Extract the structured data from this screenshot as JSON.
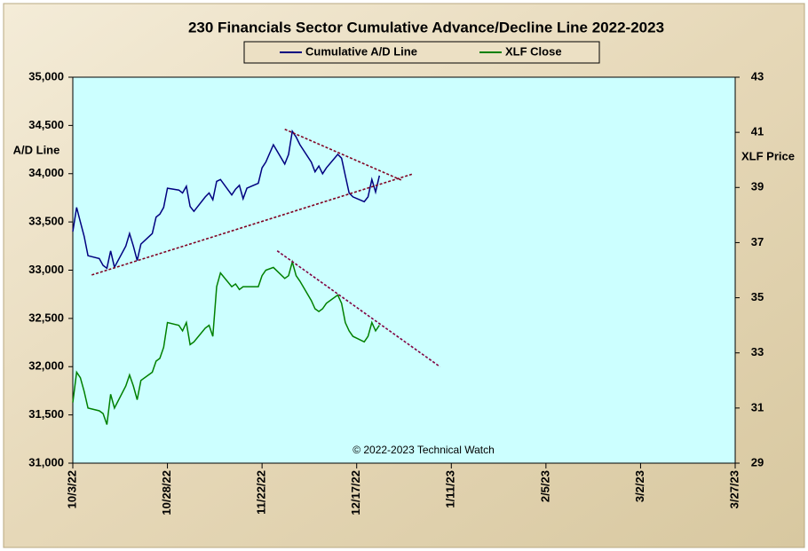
{
  "chart_data": {
    "type": "line",
    "title": "230 Financials  Sector Cumulative  Advance/Decline  Line 2022-2023",
    "y_label": "A/D Line",
    "y2_label": "XLF Price",
    "annotation": "© 2022-2023  Technical Watch",
    "x": [
      "2022-10-03",
      "2022-10-04",
      "2022-10-05",
      "2022-10-06",
      "2022-10-07",
      "2022-10-10",
      "2022-10-11",
      "2022-10-12",
      "2022-10-13",
      "2022-10-14",
      "2022-10-17",
      "2022-10-18",
      "2022-10-19",
      "2022-10-20",
      "2022-10-21",
      "2022-10-24",
      "2022-10-25",
      "2022-10-26",
      "2022-10-27",
      "2022-10-28",
      "2022-10-31",
      "2022-11-01",
      "2022-11-02",
      "2022-11-03",
      "2022-11-04",
      "2022-11-07",
      "2022-11-08",
      "2022-11-09",
      "2022-11-10",
      "2022-11-11",
      "2022-11-14",
      "2022-11-15",
      "2022-11-16",
      "2022-11-17",
      "2022-11-18",
      "2022-11-21",
      "2022-11-22",
      "2022-11-23",
      "2022-11-25",
      "2022-11-28",
      "2022-11-29",
      "2022-11-30",
      "2022-12-01",
      "2022-12-02",
      "2022-12-05",
      "2022-12-06",
      "2022-12-07",
      "2022-12-08",
      "2022-12-09",
      "2022-12-12",
      "2022-12-13",
      "2022-12-14",
      "2022-12-15",
      "2022-12-16",
      "2022-12-19",
      "2022-12-20",
      "2022-12-21",
      "2022-12-22",
      "2022-12-23"
    ],
    "series": [
      {
        "name": "Cumulative A/D Line",
        "color": "#000080",
        "axis": "y",
        "values": [
          33400,
          33650,
          33500,
          33350,
          33150,
          33120,
          33050,
          33020,
          33200,
          33030,
          33250,
          33380,
          33250,
          33100,
          33270,
          33380,
          33550,
          33580,
          33650,
          33850,
          33830,
          33800,
          33870,
          33660,
          33610,
          33760,
          33800,
          33730,
          33920,
          33940,
          33780,
          33840,
          33880,
          33740,
          33850,
          33900,
          34060,
          34120,
          34300,
          34100,
          34200,
          34440,
          34380,
          34300,
          34120,
          34020,
          34080,
          34000,
          34060,
          34200,
          34160,
          33980,
          33800,
          33760,
          33710,
          33760,
          33940,
          33810,
          33980
        ]
      },
      {
        "name": "XLF Close",
        "color": "#008000",
        "axis": "y2",
        "values": [
          31.2,
          32.3,
          32.1,
          31.6,
          31.0,
          30.9,
          30.8,
          30.4,
          31.5,
          31.0,
          31.8,
          32.2,
          31.8,
          31.3,
          32.0,
          32.3,
          32.7,
          32.8,
          33.2,
          34.1,
          34.0,
          33.8,
          34.1,
          33.3,
          33.4,
          33.9,
          34.0,
          33.6,
          35.4,
          35.9,
          35.4,
          35.5,
          35.3,
          35.4,
          35.4,
          35.4,
          35.8,
          36.0,
          36.1,
          35.7,
          35.8,
          36.3,
          35.8,
          35.6,
          34.9,
          34.6,
          34.5,
          34.6,
          34.8,
          35.1,
          34.8,
          34.1,
          33.8,
          33.6,
          33.4,
          33.6,
          34.1,
          33.8,
          34.0
        ]
      }
    ],
    "trendlines": [
      {
        "axis": "y",
        "color": "#800020",
        "x": [
          "2022-10-08",
          "2023-01-01"
        ],
        "y": [
          32950,
          34000
        ]
      },
      {
        "axis": "y",
        "color": "#800020",
        "x": [
          "2022-11-28",
          "2022-12-29"
        ],
        "y": [
          34460,
          33930
        ]
      },
      {
        "axis": "y2",
        "color": "#800040",
        "x": [
          "2022-11-26",
          "2023-01-08"
        ],
        "y": [
          36.7,
          32.5
        ]
      }
    ],
    "xlim": [
      "2022-10-03",
      "2023-03-27"
    ],
    "xticks": [
      {
        "value": "2022-10-03",
        "label": "10/3/22"
      },
      {
        "value": "2022-10-28",
        "label": "10/28/22"
      },
      {
        "value": "2022-11-22",
        "label": "11/22/22"
      },
      {
        "value": "2022-12-17",
        "label": "12/17/22"
      },
      {
        "value": "2023-01-11",
        "label": "1/11/23"
      },
      {
        "value": "2023-02-05",
        "label": "2/5/23"
      },
      {
        "value": "2023-03-02",
        "label": "3/2/23"
      },
      {
        "value": "2023-03-27",
        "label": "3/27/23"
      }
    ],
    "ylim": [
      31000,
      35000
    ],
    "yticks": [
      {
        "value": 31000,
        "label": "31,000"
      },
      {
        "value": 31500,
        "label": "31,500"
      },
      {
        "value": 32000,
        "label": "32,000"
      },
      {
        "value": 32500,
        "label": "32,500"
      },
      {
        "value": 33000,
        "label": "33,000"
      },
      {
        "value": 33500,
        "label": "33,500"
      },
      {
        "value": 34000,
        "label": "34,000"
      },
      {
        "value": 34500,
        "label": "34,500"
      },
      {
        "value": 35000,
        "label": "35,000"
      }
    ],
    "y2lim": [
      29,
      43
    ],
    "y2ticks": [
      29,
      31,
      33,
      35,
      37,
      39,
      41,
      43
    ],
    "grid": false,
    "legend": "top"
  }
}
